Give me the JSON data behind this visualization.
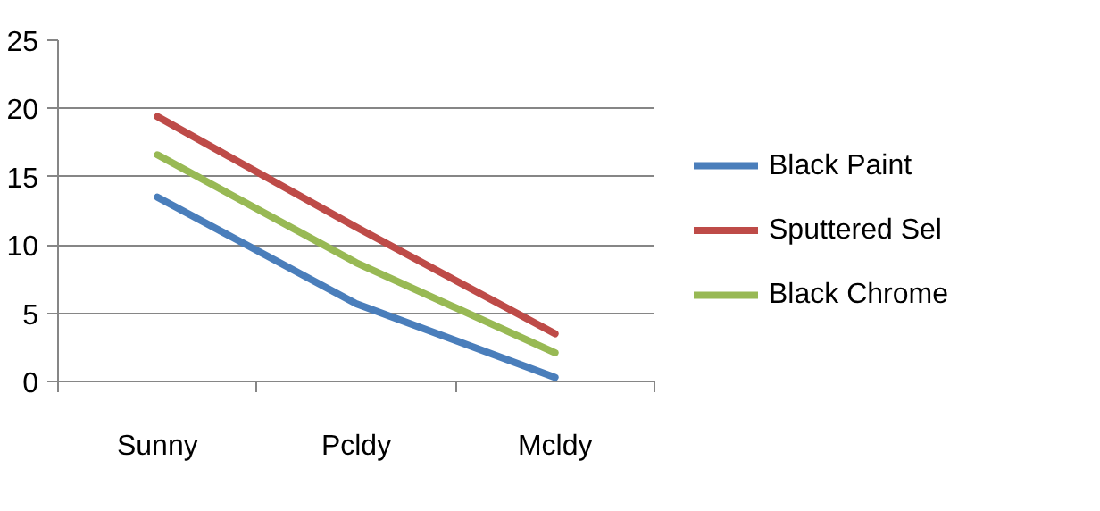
{
  "chart_data": {
    "type": "line",
    "categories": [
      "Sunny",
      "Pcldy",
      "Mcldy"
    ],
    "series": [
      {
        "name": "Black Paint",
        "color": "#4a7ebb",
        "values": [
          13.5,
          5.7,
          0.3
        ]
      },
      {
        "name": "Sputtered Sel",
        "color": "#be4b48",
        "values": [
          19.4,
          11.3,
          3.5
        ]
      },
      {
        "name": "Black Chrome",
        "color": "#98b954",
        "values": [
          16.6,
          8.7,
          2.1
        ]
      }
    ],
    "ylim": [
      0,
      25
    ],
    "yticks": [
      0,
      5,
      10,
      15,
      20,
      25
    ],
    "grid": "y",
    "legend": "right",
    "marker": "none",
    "line_style": "solid"
  }
}
